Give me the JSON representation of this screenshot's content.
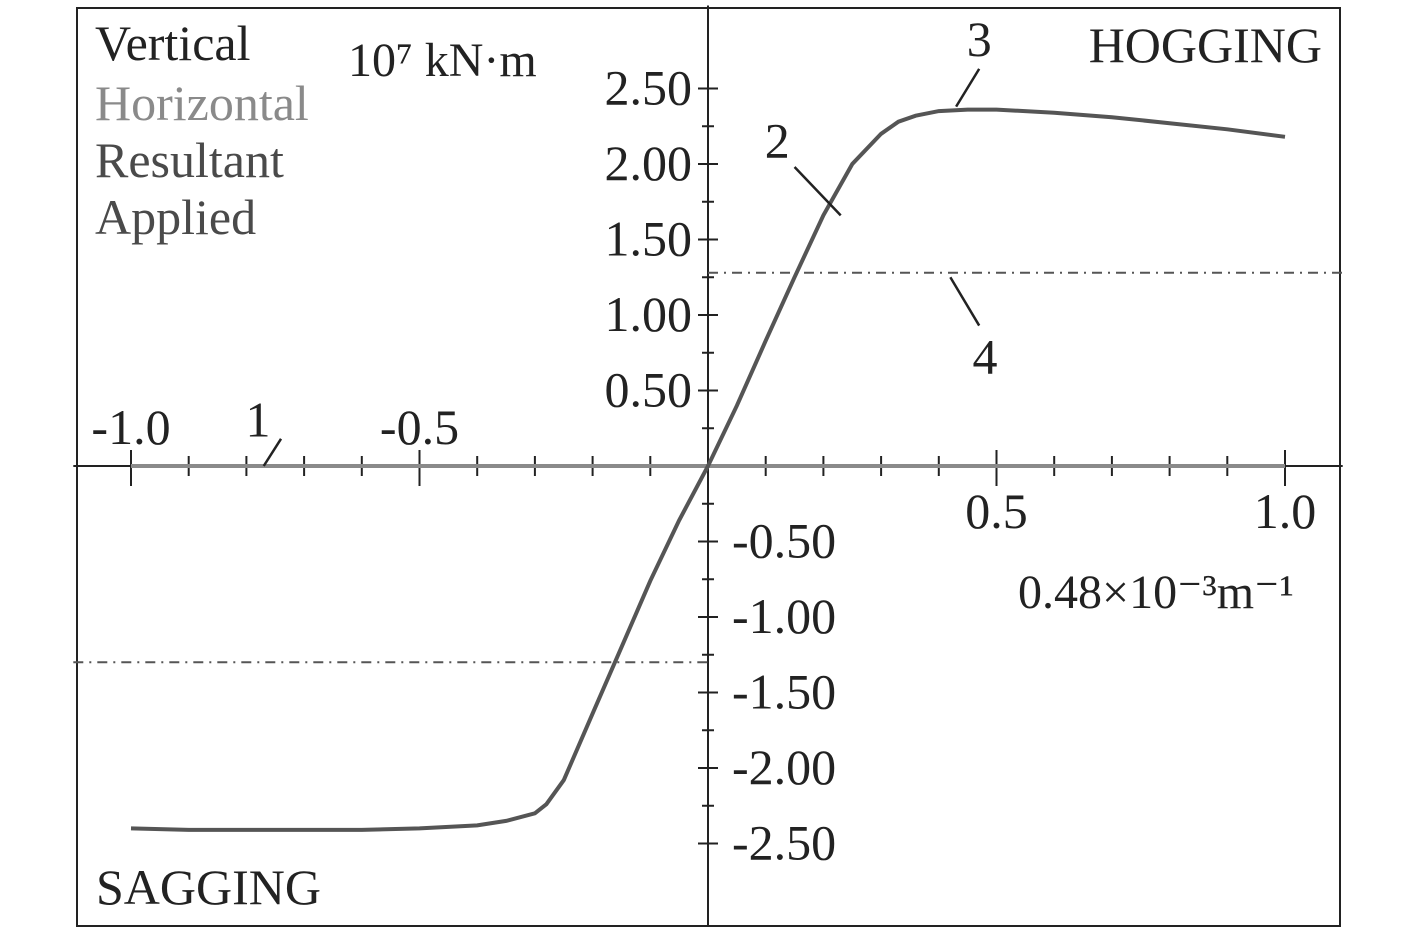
{
  "chart_data": {
    "type": "line",
    "title": "",
    "xlabel": "0.48×10⁻³m⁻¹",
    "ylabel": "10⁷ kN·m",
    "xlim": [
      -1.1,
      1.1
    ],
    "ylim": [
      -3.05,
      3.05
    ],
    "grid": false,
    "legend_position": "top-left",
    "x_ticks": [
      "-1.0",
      "-0.5",
      "0.5",
      "1.0"
    ],
    "x_tick_values": [
      -1.0,
      -0.5,
      0.5,
      1.0
    ],
    "y_ticks_positive": [
      "0.50",
      "1.00",
      "1.50",
      "2.00",
      "2.50"
    ],
    "y_tick_values_positive": [
      0.5,
      1.0,
      1.5,
      2.0,
      2.5
    ],
    "y_ticks_negative": [
      "-0.50",
      "-1.00",
      "-1.50",
      "-2.00",
      "-2.50"
    ],
    "y_tick_values_negative": [
      -0.5,
      -1.0,
      -1.5,
      -2.0,
      -2.5
    ],
    "legend": [
      {
        "label": "Vertical",
        "color": "#222222"
      },
      {
        "label": "Horizontal",
        "color": "#8a8a8a"
      },
      {
        "label": "Resultant",
        "color": "#4a4a4a"
      },
      {
        "label": "Applied",
        "color": "#4a4a4a"
      }
    ],
    "region_labels": {
      "hogging": "HOGGING",
      "sagging": "SAGGING"
    },
    "series": [
      {
        "name": "Horizontal",
        "color": "#8a8a8a",
        "x": [
          -1.0,
          1.0
        ],
        "y": [
          0.0,
          0.0
        ]
      },
      {
        "name": "Vertical",
        "color": "#555555",
        "x": [
          -1.0,
          -0.9,
          -0.8,
          -0.6,
          -0.5,
          -0.4,
          -0.35,
          -0.3,
          -0.28,
          -0.25,
          -0.2,
          -0.15,
          -0.1,
          -0.05,
          0.0,
          0.05,
          0.1,
          0.15,
          0.2,
          0.25,
          0.3,
          0.33,
          0.36,
          0.4,
          0.45,
          0.5,
          0.6,
          0.7,
          0.8,
          0.9,
          1.0
        ],
        "y": [
          -2.4,
          -2.41,
          -2.41,
          -2.41,
          -2.4,
          -2.38,
          -2.35,
          -2.3,
          -2.24,
          -2.08,
          -1.64,
          -1.2,
          -0.76,
          -0.36,
          0.0,
          0.4,
          0.83,
          1.25,
          1.66,
          2.0,
          2.2,
          2.28,
          2.32,
          2.35,
          2.36,
          2.36,
          2.34,
          2.31,
          2.27,
          2.23,
          2.18
        ]
      },
      {
        "name": "Applied",
        "color": "#555555",
        "dashed": true,
        "x": [
          -1.1,
          0.0
        ],
        "y": [
          -1.3,
          -1.3
        ]
      },
      {
        "name": "Applied",
        "color": "#555555",
        "dashed": true,
        "x": [
          0.0,
          1.1
        ],
        "y": [
          1.28,
          1.28
        ]
      }
    ],
    "annotations": [
      {
        "text": "1",
        "x": -0.78,
        "y": 0.3,
        "line_to": [
          -0.77,
          0.0
        ],
        "line_from": [
          -0.74,
          0.18
        ]
      },
      {
        "text": "2",
        "x": 0.12,
        "y": 2.15,
        "line_from": [
          0.15,
          1.98
        ],
        "line_to": [
          0.23,
          1.66
        ]
      },
      {
        "text": "3",
        "x": 0.47,
        "y": 2.82,
        "line_from": [
          0.47,
          2.63
        ],
        "line_to": [
          0.43,
          2.38
        ]
      },
      {
        "text": "4",
        "x": 0.48,
        "y": 0.72,
        "line_from": [
          0.47,
          0.93
        ],
        "line_to": [
          0.42,
          1.25
        ]
      }
    ]
  }
}
